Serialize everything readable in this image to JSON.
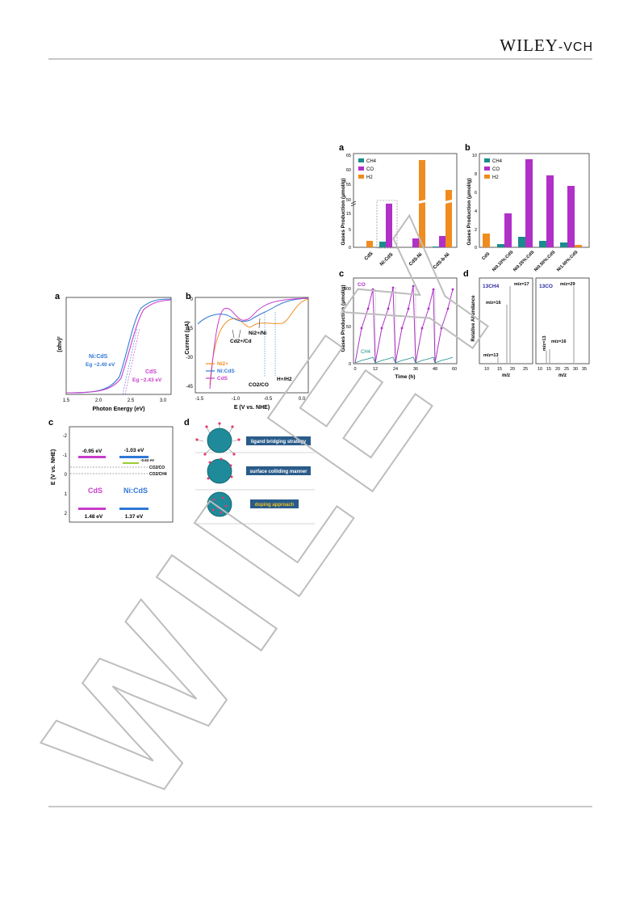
{
  "header": {
    "logo_wiley": "WILEY",
    "logo_vch": "-VCH"
  },
  "watermark": {
    "text": "WILEY"
  },
  "colors": {
    "CH4": "#1a8c8c",
    "CO": "#b030c8",
    "H2": "#f08c1e",
    "CdS": "#c83ccc",
    "NiCdS": "#2e78d8",
    "Ni2plus": "#f09020"
  },
  "figure_right": {
    "panel_a": {
      "letter": "a",
      "ylabel": "Gases Production (μmol/g)",
      "legend": [
        "CH4",
        "CO",
        "H2"
      ],
      "categories": [
        "CdS",
        "Ni:CdS",
        "CdS-Ni",
        "CdS-b-Ni"
      ],
      "yticks_low": [
        "0",
        "5",
        "10",
        "15",
        "20",
        "25",
        "30"
      ],
      "yticks_high": [
        "50",
        "55",
        "60",
        "65"
      ]
    },
    "panel_b": {
      "letter": "b",
      "ylabel": "Gases Production (μmol/g)",
      "legend": [
        "CH4",
        "CO",
        "H2"
      ],
      "categories": [
        "CdS",
        "Ni0.10%:CdS",
        "Ni0.25%:CdS",
        "Ni0.50%:CdS",
        "Ni1.00%:CdS"
      ],
      "yticks": [
        "0",
        "2",
        "4",
        "6",
        "8",
        "10"
      ]
    },
    "panel_c": {
      "letter": "c",
      "ylabel": "Gases Production (μmol/g)",
      "xlabel": "Time (h)",
      "xticks": [
        "0",
        "12",
        "24",
        "36",
        "48",
        "60"
      ],
      "yticks": [
        "0",
        "50",
        "100"
      ],
      "label_co": "CO",
      "label_ch4": "CH4"
    },
    "panel_d": {
      "letter": "d",
      "ylabel": "Relative Abundance",
      "xlabel": "m/z",
      "left_title": "13CH4",
      "right_title": "13CO",
      "left_labels": [
        "m/z=17",
        "m/z=16",
        "m/z=13"
      ],
      "right_labels": [
        "m/z=29",
        "m/z=13",
        "m/z=16"
      ],
      "left_xticks": [
        "10",
        "15",
        "20",
        "25"
      ],
      "right_xticks": [
        "10",
        "15",
        "20",
        "25",
        "30",
        "35"
      ]
    }
  },
  "figure_left": {
    "panel_a": {
      "letter": "a",
      "ylabel": "(αhν)²",
      "xlabel": "Photon Energy (eV)",
      "xticks": [
        "1.5",
        "2.0",
        "2.5",
        "3.0"
      ],
      "label_nicds": "Ni:CdS",
      "eg_nicds": "Eg ~2.40 eV",
      "label_cds": "CdS",
      "eg_cds": "Eg ~2.43 eV"
    },
    "panel_b": {
      "letter": "b",
      "ylabel": "Current (μA)",
      "xlabel": "E (V vs. NHE)",
      "xticks": [
        "-1.5",
        "-1.0",
        "-0.5",
        "0.0"
      ],
      "yticks": [
        "0",
        "-15",
        "-30",
        "-45"
      ],
      "legend": [
        "Ni2+",
        "Ni:CdS",
        "CdS"
      ],
      "ann_cd": "Cd2+/Cd",
      "ann_ni": "Ni2+/Ni",
      "ann_co2": "CO2/CO",
      "ann_h2": "H+/H2"
    },
    "panel_c": {
      "letter": "c",
      "ylabel": "E (V vs. NHE)",
      "yticks": [
        "-2",
        "-1",
        "0",
        "1",
        "2"
      ],
      "cb_cds": "-0.95 eV",
      "cb_nicds": "-1.03 eV",
      "level_small": "-0.63 eV",
      "line_co": "CO2/CO",
      "line_ch4": "CO2/CH4",
      "name_cds": "CdS",
      "name_nicds": "Ni:CdS",
      "vb_cds": "1.48 eV",
      "vb_nicds": "1.37 eV"
    },
    "panel_d": {
      "letter": "d",
      "labels": [
        "ligand bridging strategy",
        "surface colliding manner",
        "doping approach"
      ]
    }
  }
}
